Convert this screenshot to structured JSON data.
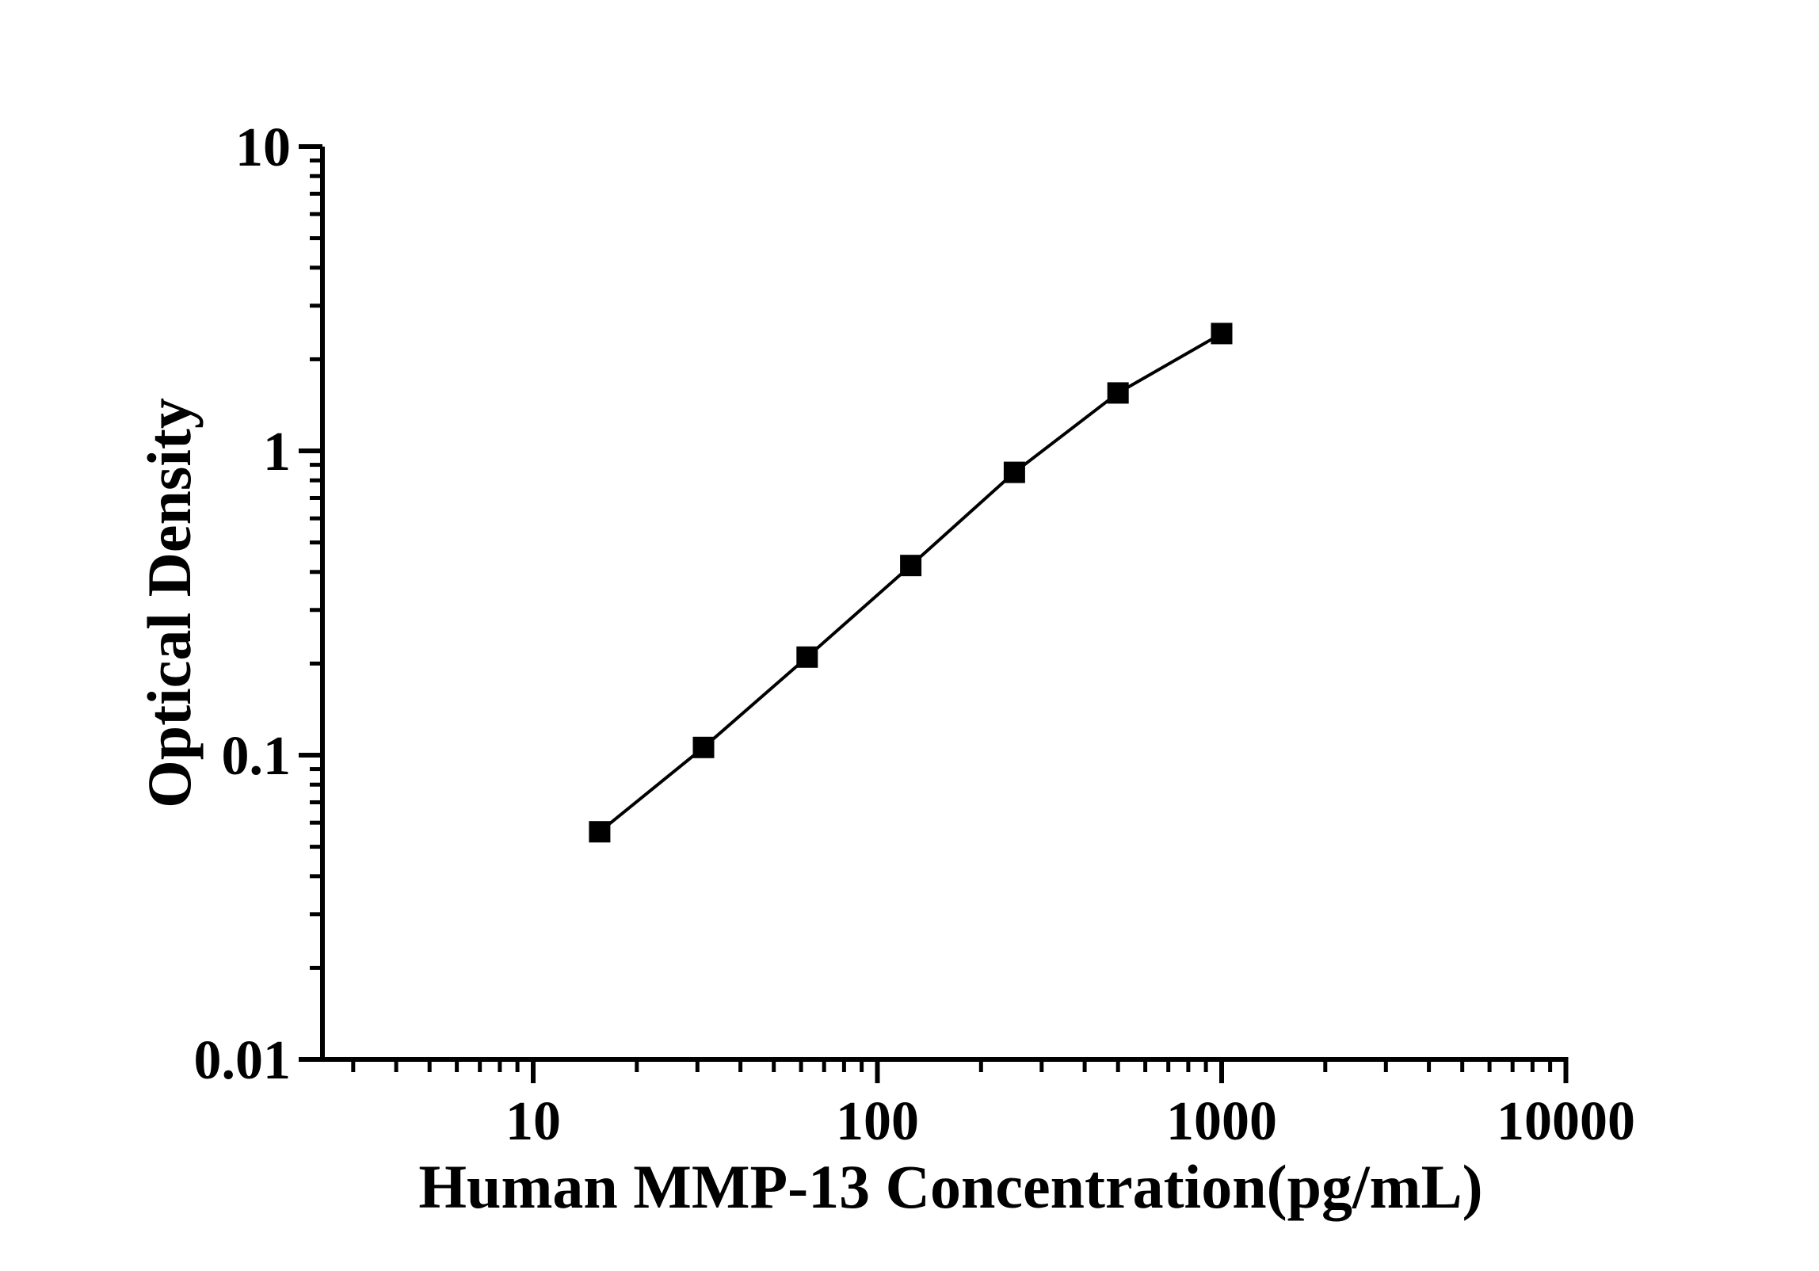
{
  "chart_data": {
    "type": "line",
    "subtype": "scatter-line-log-log",
    "title": "",
    "xlabel": "Human MMP-13 Concentration(pg/mL)",
    "ylabel": "Optical Density",
    "x_scale": "log",
    "y_scale": "log",
    "xlim": [
      2.44,
      10000
    ],
    "ylim": [
      0.01,
      10
    ],
    "x_tick_values": [
      10,
      100,
      1000,
      10000
    ],
    "x_tick_labels": [
      "10",
      "100",
      "1000",
      "10000"
    ],
    "y_tick_values": [
      0.01,
      0.1,
      1,
      10
    ],
    "y_tick_labels": [
      "0.01",
      "0.1",
      "1",
      "10"
    ],
    "minor_ticks": "log-2-to-9",
    "grid": false,
    "legend": "none",
    "marker": "filled-square",
    "series": [
      {
        "name": "standard-curve",
        "x": [
          15.6,
          31.25,
          62.5,
          125,
          250,
          500,
          1000
        ],
        "y": [
          0.056,
          0.106,
          0.21,
          0.42,
          0.85,
          1.55,
          2.43
        ]
      }
    ],
    "colors": {
      "line": "#000000",
      "marker": "#000000",
      "axis": "#000000",
      "background": "#ffffff"
    }
  }
}
